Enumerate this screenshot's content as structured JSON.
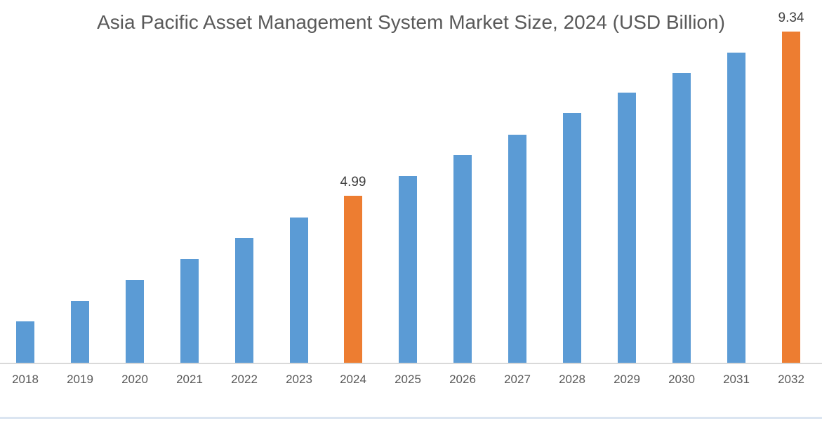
{
  "chart_data": {
    "type": "bar",
    "title": "Asia Pacific Asset Management System Market Size, 2024 (USD Billion)",
    "xlabel": "",
    "ylabel": "",
    "categories": [
      "2018",
      "2019",
      "2020",
      "2021",
      "2022",
      "2023",
      "2024",
      "2025",
      "2026",
      "2027",
      "2028",
      "2029",
      "2030",
      "2031",
      "2032"
    ],
    "values": [
      1.66,
      2.2,
      2.76,
      3.32,
      3.86,
      4.41,
      4.99,
      5.51,
      6.07,
      6.61,
      7.17,
      7.72,
      8.24,
      8.78,
      9.34
    ],
    "labeled_points": {
      "2024": "4.99",
      "2032": "9.34"
    },
    "highlighted_categories": [
      "2024",
      "2032"
    ],
    "colors": {
      "bar_default": "#5B9BD5",
      "bar_highlight": "#ED7D31",
      "title_text": "#595959",
      "tick_text": "#595959",
      "data_label_text": "#404040",
      "axis_line": "#d9d9d9",
      "bottom_divider": "#dbe5f1"
    },
    "legend": "none",
    "gridlines": false,
    "y_axis_visible": false,
    "value_axis_note": "only 2024 and 2032 bars carry data labels; other values estimated from bar heights"
  }
}
